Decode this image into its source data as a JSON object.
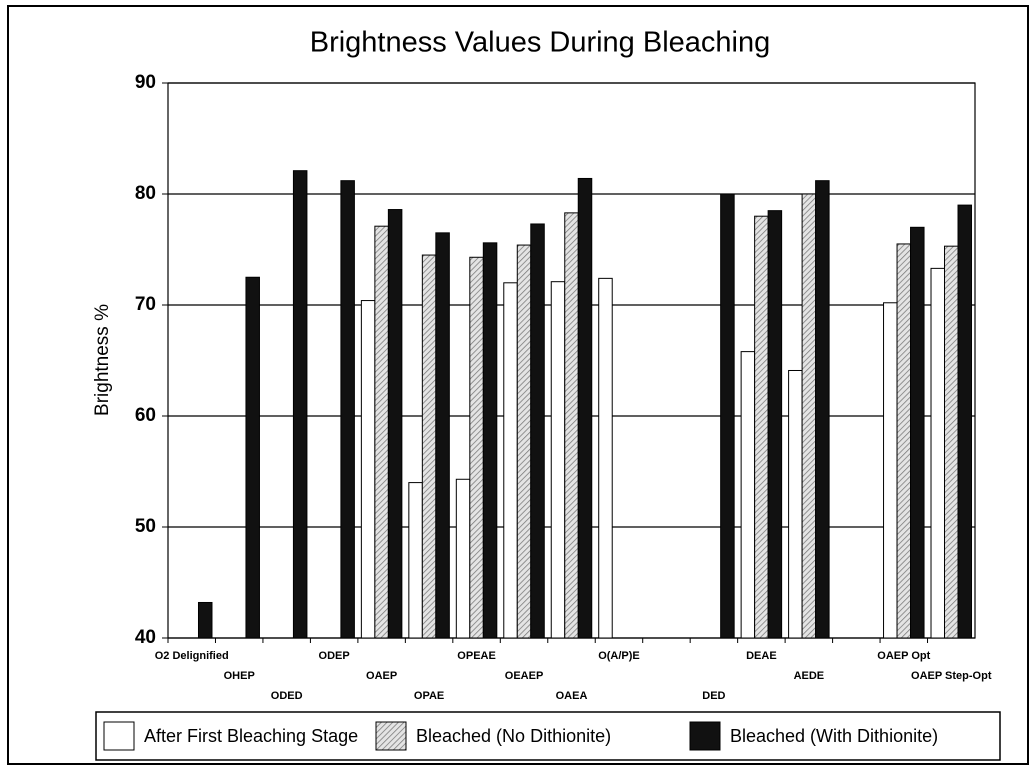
{
  "chart_data": {
    "type": "bar",
    "title": "Brightness Values During Bleaching",
    "y_label": "Brightness %",
    "categories": [
      "O2 Delignified",
      "OHEP",
      "ODED",
      "ODEP",
      "OAEP",
      "OPAE",
      "OPEAE",
      "OEAEP",
      "OAEA",
      "O(A/P)E",
      null,
      "DED",
      "DEAE",
      "AEDE",
      null,
      "OAEP Opt",
      "OAEP Step-Opt"
    ],
    "series": [
      {
        "name": "After First Bleaching Stage",
        "color": "#ffffff",
        "values": [
          null,
          null,
          null,
          null,
          70.4,
          54.0,
          54.3,
          72.0,
          72.1,
          72.4,
          null,
          null,
          65.8,
          64.1,
          null,
          70.2,
          73.3
        ]
      },
      {
        "name": "Bleached (No Dithionite)",
        "color": "#cfcfcf",
        "hatch": true,
        "values": [
          null,
          null,
          null,
          null,
          77.1,
          74.5,
          74.3,
          75.4,
          78.3,
          null,
          null,
          null,
          78.0,
          80.0,
          null,
          75.5,
          75.3
        ]
      },
      {
        "name": "Bleached (With Dithionite)",
        "color": "#111111",
        "values": [
          43.2,
          72.5,
          82.1,
          81.2,
          78.6,
          76.5,
          75.6,
          77.3,
          81.4,
          null,
          null,
          80.0,
          78.5,
          81.2,
          null,
          77.0,
          79.0
        ]
      }
    ],
    "ylim": [
      40,
      90
    ],
    "yticks": [
      40,
      50,
      60,
      70,
      80,
      90
    ],
    "grid": true,
    "legend": "bottom"
  }
}
